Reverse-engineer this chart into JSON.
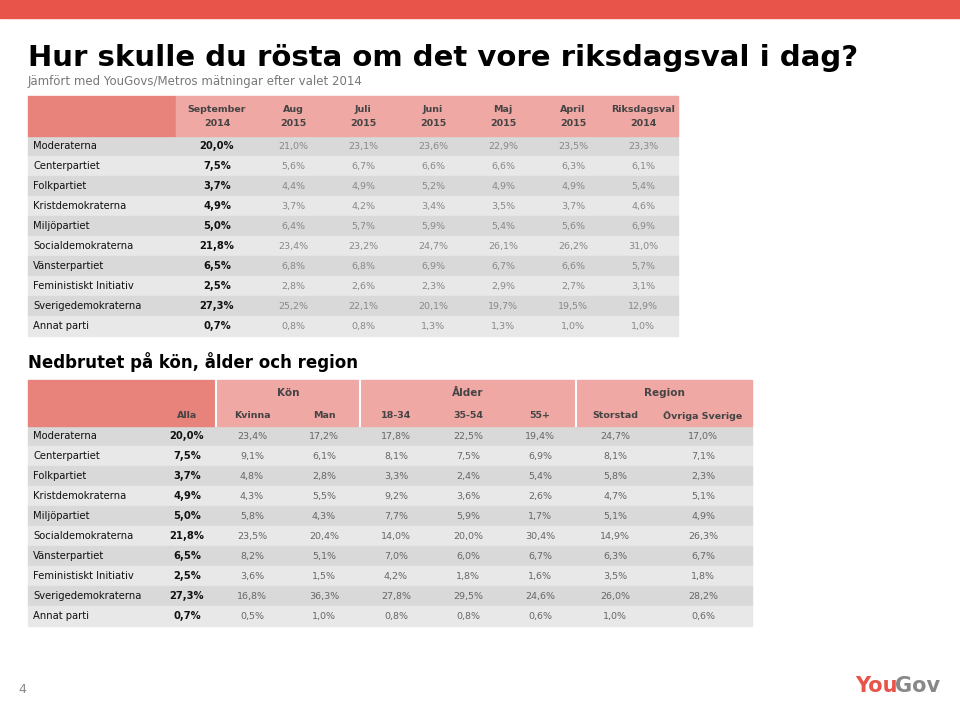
{
  "title": "Hur skulle du rösta om det vore riksdagsval i dag?",
  "subtitle": "Jämfört med YouGovs/Metros mätningar efter valet 2014",
  "red_bar_color": "#E8534A",
  "header_bg_dark": "#E8837C",
  "header_bg_light": "#F0A8A4",
  "row_bg_odd": "#D9D9D9",
  "row_bg_even": "#E8E8E8",
  "table1_cols": [
    "September\n2014",
    "Aug\n2015",
    "Juli\n2015",
    "Juni\n2015",
    "Maj\n2015",
    "April\n2015",
    "Riksdagsval\n2014"
  ],
  "table1_rows": [
    [
      "Moderaterna",
      "20,0%",
      "21,0%",
      "23,1%",
      "23,6%",
      "22,9%",
      "23,5%",
      "23,3%"
    ],
    [
      "Centerpartiet",
      "7,5%",
      "5,6%",
      "6,7%",
      "6,6%",
      "6,6%",
      "6,3%",
      "6,1%"
    ],
    [
      "Folkpartiet",
      "3,7%",
      "4,4%",
      "4,9%",
      "5,2%",
      "4,9%",
      "4,9%",
      "5,4%"
    ],
    [
      "Kristdemokraterna",
      "4,9%",
      "3,7%",
      "4,2%",
      "3,4%",
      "3,5%",
      "3,7%",
      "4,6%"
    ],
    [
      "Miljöpartiet",
      "5,0%",
      "6,4%",
      "5,7%",
      "5,9%",
      "5,4%",
      "5,6%",
      "6,9%"
    ],
    [
      "Socialdemokraterna",
      "21,8%",
      "23,4%",
      "23,2%",
      "24,7%",
      "26,1%",
      "26,2%",
      "31,0%"
    ],
    [
      "Vänsterpartiet",
      "6,5%",
      "6,8%",
      "6,8%",
      "6,9%",
      "6,7%",
      "6,6%",
      "5,7%"
    ],
    [
      "Feministiskt Initiativ",
      "2,5%",
      "2,8%",
      "2,6%",
      "2,3%",
      "2,9%",
      "2,7%",
      "3,1%"
    ],
    [
      "Sverigedemokraterna",
      "27,3%",
      "25,2%",
      "22,1%",
      "20,1%",
      "19,7%",
      "19,5%",
      "12,9%"
    ],
    [
      "Annat parti",
      "0,7%",
      "0,8%",
      "0,8%",
      "1,3%",
      "1,3%",
      "1,0%",
      "1,0%"
    ]
  ],
  "subtitle2": "Nedbrutet på kön, ålder och region",
  "table2_rows": [
    [
      "Moderaterna",
      "20,0%",
      "23,4%",
      "17,2%",
      "17,8%",
      "22,5%",
      "19,4%",
      "24,7%",
      "17,0%"
    ],
    [
      "Centerpartiet",
      "7,5%",
      "9,1%",
      "6,1%",
      "8,1%",
      "7,5%",
      "6,9%",
      "8,1%",
      "7,1%"
    ],
    [
      "Folkpartiet",
      "3,7%",
      "4,8%",
      "2,8%",
      "3,3%",
      "2,4%",
      "5,4%",
      "5,8%",
      "2,3%"
    ],
    [
      "Kristdemokraterna",
      "4,9%",
      "4,3%",
      "5,5%",
      "9,2%",
      "3,6%",
      "2,6%",
      "4,7%",
      "5,1%"
    ],
    [
      "Miljöpartiet",
      "5,0%",
      "5,8%",
      "4,3%",
      "7,7%",
      "5,9%",
      "1,7%",
      "5,1%",
      "4,9%"
    ],
    [
      "Socialdemokraterna",
      "21,8%",
      "23,5%",
      "20,4%",
      "14,0%",
      "20,0%",
      "30,4%",
      "14,9%",
      "26,3%"
    ],
    [
      "Vänsterpartiet",
      "6,5%",
      "8,2%",
      "5,1%",
      "7,0%",
      "6,0%",
      "6,7%",
      "6,3%",
      "6,7%"
    ],
    [
      "Feministiskt Initiativ",
      "2,5%",
      "3,6%",
      "1,5%",
      "4,2%",
      "1,8%",
      "1,6%",
      "3,5%",
      "1,8%"
    ],
    [
      "Sverigedemokraterna",
      "27,3%",
      "16,8%",
      "36,3%",
      "27,8%",
      "29,5%",
      "24,6%",
      "26,0%",
      "28,2%"
    ],
    [
      "Annat parti",
      "0,7%",
      "0,5%",
      "1,0%",
      "0,8%",
      "0,8%",
      "0,6%",
      "1,0%",
      "0,6%"
    ]
  ]
}
